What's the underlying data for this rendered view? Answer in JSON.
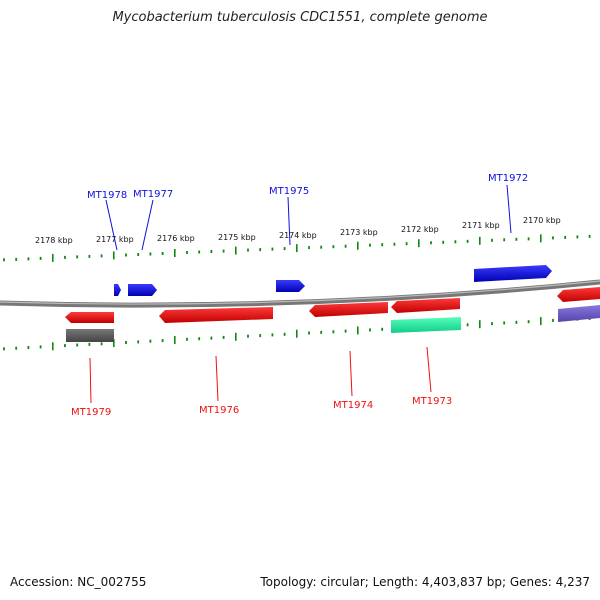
{
  "title": "Mycobacterium tuberculosis CDC1551, complete genome",
  "accession": "Accession: NC_002755",
  "summary": "Topology: circular; Length: 4,403,837 bp; Genes: 4,237",
  "colors": {
    "forward": "#1010e0",
    "reverse": "#ee1111",
    "feature_grey": "#666666",
    "feature_green": "#22ee99",
    "feature_purple": "#7766cc",
    "backbone": "#888888",
    "ticks": "#118811"
  },
  "kbp_labels": [
    "2178 kbp",
    "2177 kbp",
    "2176 kbp",
    "2175 kbp",
    "2174 kbp",
    "2173 kbp",
    "2172 kbp",
    "2171 kbp",
    "2170 kbp"
  ],
  "forward_genes": [
    "MT1978",
    "MT1977",
    "MT1975",
    "MT1972"
  ],
  "reverse_genes": [
    "MT1979",
    "MT1976",
    "MT1974",
    "MT1973"
  ]
}
